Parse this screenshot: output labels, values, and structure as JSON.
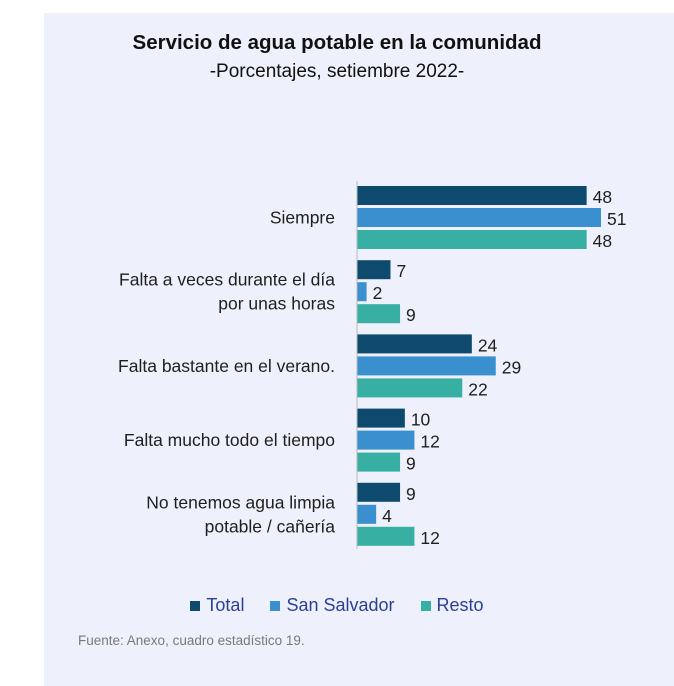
{
  "chart_data": {
    "type": "bar",
    "orientation": "horizontal",
    "title": "Servicio de agua potable en la comunidad",
    "subtitle": "-Porcentajes, setiembre 2022-",
    "categories": [
      [
        "Siempre"
      ],
      [
        "Falta a veces durante el día",
        "por unas horas"
      ],
      [
        "Falta bastante en el verano."
      ],
      [
        "Falta mucho todo el tiempo"
      ],
      [
        "No tenemos agua limpia",
        "potable / cañería"
      ]
    ],
    "series": [
      {
        "name": "Total",
        "color": "#0d4a6e",
        "values": [
          48,
          7,
          24,
          10,
          9
        ]
      },
      {
        "name": "San Salvador",
        "color": "#3a8fcf",
        "values": [
          51,
          2,
          29,
          12,
          4
        ]
      },
      {
        "name": "Resto",
        "color": "#37afa3",
        "values": [
          48,
          9,
          22,
          9,
          12
        ]
      }
    ],
    "xlim": [
      0,
      55
    ],
    "grid": false,
    "legend_position": "bottom"
  },
  "source_note": "Fuente: Anexo, cuadro estadístico 19."
}
